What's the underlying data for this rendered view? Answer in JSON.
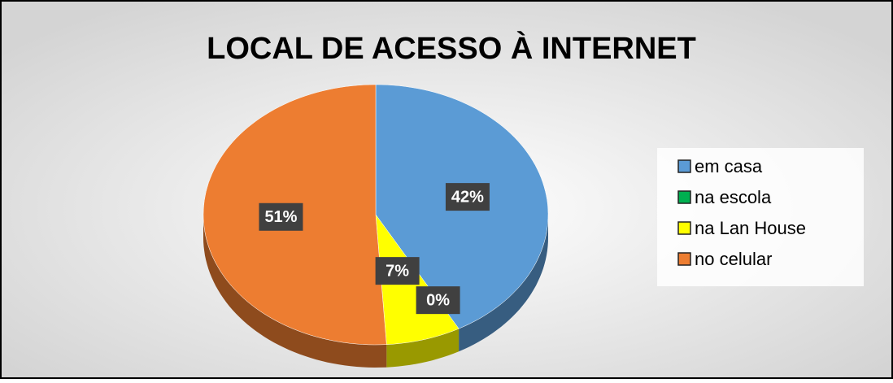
{
  "chart_data": {
    "type": "pie3d",
    "title": "LOCAL DE ACESSO À INTERNET",
    "categories": [
      "em casa",
      "na escola",
      "na Lan House",
      "no celular"
    ],
    "values": [
      42,
      0,
      7,
      51
    ],
    "value_labels": [
      "42%",
      "0%",
      "7%",
      "51%"
    ],
    "colors": [
      "#5b9bd5",
      "#00b050",
      "#ffff00",
      "#ed7d31"
    ],
    "legend": "right"
  }
}
